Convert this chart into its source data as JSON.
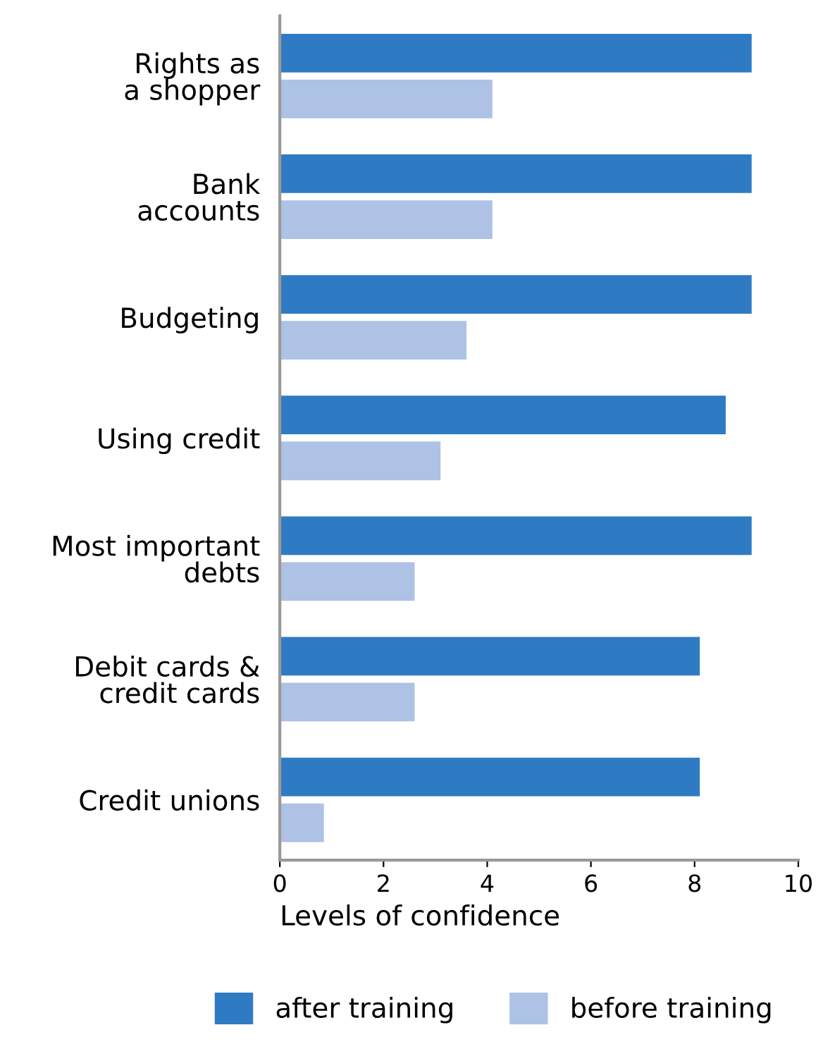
{
  "chart_data": {
    "type": "bar",
    "orientation": "horizontal",
    "xlabel": "Levels of confidence",
    "categories": [
      "Rights as\na shopper",
      "Bank\naccounts",
      "Budgeting",
      "Using credit",
      "Most important\ndebts",
      "Debit cards &\ncredit cards",
      "Credit unions"
    ],
    "series": [
      {
        "name": "after training",
        "color": "#2e7bc4",
        "values": [
          9.1,
          9.1,
          9.1,
          8.6,
          9.1,
          8.1,
          8.1
        ]
      },
      {
        "name": "before training",
        "color": "#adc2e4",
        "values": [
          4.1,
          4.1,
          3.6,
          3.1,
          2.6,
          2.6,
          0.85
        ]
      }
    ],
    "xlim": [
      0,
      10
    ],
    "xticks": [
      0,
      2,
      4,
      6,
      8,
      10
    ],
    "grid": false,
    "legend": "bottom"
  }
}
